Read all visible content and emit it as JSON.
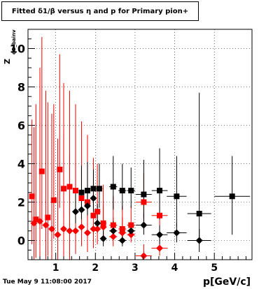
{
  "title": "Fitted δ1/β versus η and p for Primary pion+",
  "timestamp": "Tue May  9 11:08:00 2017",
  "chart_data": {
    "type": "scatter",
    "title": "Fitted δ1/β versus η and p for Primary pion+",
    "xlabel": "p[GeV/c]",
    "ylabel": "Z",
    "ylabel_sub": "dB_bainv",
    "xlim": [
      0.3,
      5.95
    ],
    "ylim": [
      -1.0,
      11.0
    ],
    "x_ticks": [
      1,
      2,
      3,
      4,
      5
    ],
    "y_ticks": [
      0,
      2,
      4,
      6,
      8,
      10
    ],
    "grid": true,
    "legend": "none",
    "colors": {
      "black": "#000000",
      "red": "#ff0000"
    },
    "series": [
      {
        "marker": "square",
        "color": "black",
        "points": [
          {
            "x": 2.45,
            "y": 2.8,
            "ex": 0.1,
            "ey_lo": 1.2,
            "ey_hi": 1.6
          },
          {
            "x": 2.68,
            "y": 2.6,
            "ex": 0.1,
            "ey_lo": 1.0,
            "ey_hi": 1.4
          },
          {
            "x": 2.9,
            "y": 2.6,
            "ex": 0.1,
            "ey_lo": 0.9,
            "ey_hi": 1.2
          },
          {
            "x": 3.22,
            "y": 2.4,
            "ex": 0.2,
            "ey_lo": 1.2,
            "ey_hi": 1.8
          },
          {
            "x": 3.62,
            "y": 2.6,
            "ex": 0.2,
            "ey_lo": 1.5,
            "ey_hi": 2.2
          },
          {
            "x": 4.05,
            "y": 2.3,
            "ex": 0.25,
            "ey_lo": 1.6,
            "ey_hi": 2.1
          },
          {
            "x": 4.62,
            "y": 1.4,
            "ex": 0.3,
            "ey_lo": 1.5,
            "ey_hi": 6.3
          },
          {
            "x": 5.45,
            "y": 2.3,
            "ex": 0.45,
            "ey_lo": 2.0,
            "ey_hi": 2.1
          },
          {
            "x": 2.1,
            "y": 2.7,
            "ex": 0.08,
            "ey_lo": 1.0,
            "ey_hi": 1.3
          },
          {
            "x": 1.95,
            "y": 2.7,
            "ex": 0.05,
            "ey_lo": 1.2,
            "ey_hi": 1.0
          },
          {
            "x": 1.8,
            "y": 2.6,
            "ex": 0.05,
            "ey_lo": 1.0,
            "ey_hi": 1.5
          },
          {
            "x": 1.65,
            "y": 2.5,
            "ex": 0.05,
            "ey_lo": 1.0,
            "ey_hi": 1.4
          }
        ]
      },
      {
        "marker": "diamond",
        "color": "black",
        "points": [
          {
            "x": 2.05,
            "y": 0.9,
            "ex": 0.08,
            "ey_lo": 0.5,
            "ey_hi": 1.0
          },
          {
            "x": 2.2,
            "y": 0.1,
            "ex": 0.08,
            "ey_lo": 0.4,
            "ey_hi": 0.6
          },
          {
            "x": 2.45,
            "y": 0.5,
            "ex": 0.1,
            "ey_lo": 0.3,
            "ey_hi": 0.5
          },
          {
            "x": 2.68,
            "y": 0.0,
            "ex": 0.1,
            "ey_lo": 0.3,
            "ey_hi": 0.4
          },
          {
            "x": 2.9,
            "y": 0.5,
            "ex": 0.1,
            "ey_lo": 0.3,
            "ey_hi": 0.4
          },
          {
            "x": 3.22,
            "y": 0.8,
            "ex": 0.2,
            "ey_lo": 0.5,
            "ey_hi": 0.6
          },
          {
            "x": 3.62,
            "y": 0.3,
            "ex": 0.2,
            "ey_lo": 0.5,
            "ey_hi": 0.5
          },
          {
            "x": 4.05,
            "y": 0.4,
            "ex": 0.25,
            "ey_lo": 0.5,
            "ey_hi": 0.5
          },
          {
            "x": 4.62,
            "y": 0.0,
            "ex": 0.3,
            "ey_lo": 0.6,
            "ey_hi": 0.6
          },
          {
            "x": 1.95,
            "y": 2.2,
            "ex": 0.05,
            "ey_lo": 0.5,
            "ey_hi": 0.8
          },
          {
            "x": 1.8,
            "y": 1.8,
            "ex": 0.05,
            "ey_lo": 0.5,
            "ey_hi": 0.8
          },
          {
            "x": 1.65,
            "y": 1.6,
            "ex": 0.05,
            "ey_lo": 0.5,
            "ey_hi": 0.8
          },
          {
            "x": 1.5,
            "y": 1.5,
            "ex": 0.05,
            "ey_lo": 0.6,
            "ey_hi": 1.0
          }
        ]
      },
      {
        "marker": "square",
        "color": "red",
        "points": [
          {
            "x": 2.05,
            "y": 1.5,
            "ex": 0.08,
            "ey_lo": 1.0,
            "ey_hi": 2.5
          },
          {
            "x": 2.2,
            "y": 0.9,
            "ex": 0.08,
            "ey_lo": 0.8,
            "ey_hi": 2.0
          },
          {
            "x": 2.45,
            "y": 0.8,
            "ex": 0.1,
            "ey_lo": 0.6,
            "ey_hi": 1.5
          },
          {
            "x": 2.68,
            "y": 0.6,
            "ex": 0.1,
            "ey_lo": 0.5,
            "ey_hi": 1.2
          },
          {
            "x": 2.9,
            "y": 0.8,
            "ex": 0.1,
            "ey_lo": 0.5,
            "ey_hi": 1.0
          },
          {
            "x": 3.22,
            "y": 2.0,
            "ex": 0.2,
            "ey_lo": 1.0,
            "ey_hi": 1.5
          },
          {
            "x": 3.62,
            "y": 1.3,
            "ex": 0.2,
            "ey_lo": 0.8,
            "ey_hi": 1.5
          },
          {
            "x": 1.95,
            "y": 1.3,
            "ex": 0.05,
            "ey_lo": 1.0,
            "ey_hi": 3.0
          },
          {
            "x": 1.8,
            "y": 2.0,
            "ex": 0.05,
            "ey_lo": 1.2,
            "ey_hi": 3.5
          },
          {
            "x": 1.65,
            "y": 2.2,
            "ex": 0.05,
            "ey_lo": 1.2,
            "ey_hi": 4.0
          },
          {
            "x": 1.5,
            "y": 2.6,
            "ex": 0.05,
            "ey_lo": 1.5,
            "ey_hi": 4.5
          },
          {
            "x": 1.35,
            "y": 2.8,
            "ex": 0.05,
            "ey_lo": 1.5,
            "ey_hi": 5.0
          },
          {
            "x": 1.2,
            "y": 2.7,
            "ex": 0.05,
            "ey_lo": 1.5,
            "ey_hi": 5.5
          },
          {
            "x": 1.1,
            "y": 3.7,
            "ex": 0.05,
            "ey_lo": 2.0,
            "ey_hi": 6.0
          },
          {
            "x": 0.95,
            "y": 2.1,
            "ex": 0.05,
            "ey_lo": 2.0,
            "ey_hi": 5.0
          },
          {
            "x": 0.8,
            "y": 1.2,
            "ex": 0.05,
            "ey_lo": 2.0,
            "ey_hi": 6.0
          },
          {
            "x": 0.65,
            "y": 3.6,
            "ex": 0.05,
            "ey_lo": 3.0,
            "ey_hi": 7.0
          },
          {
            "x": 0.5,
            "y": 1.1,
            "ex": 0.05,
            "ey_lo": 2.0,
            "ey_hi": 6.0
          },
          {
            "x": 0.4,
            "y": 2.3,
            "ex": 0.05,
            "ey_lo": 2.5,
            "ey_hi": 4.0
          }
        ]
      },
      {
        "marker": "diamond",
        "color": "red",
        "points": [
          {
            "x": 2.05,
            "y": 0.6,
            "ex": 0.08,
            "ey_lo": 0.8,
            "ey_hi": 1.5
          },
          {
            "x": 2.2,
            "y": 0.7,
            "ex": 0.08,
            "ey_lo": 0.6,
            "ey_hi": 1.2
          },
          {
            "x": 2.45,
            "y": 0.2,
            "ex": 0.1,
            "ey_lo": 0.5,
            "ey_hi": 1.0
          },
          {
            "x": 2.68,
            "y": 0.4,
            "ex": 0.1,
            "ey_lo": 0.5,
            "ey_hi": 0.8
          },
          {
            "x": 2.9,
            "y": 0.3,
            "ex": 0.1,
            "ey_lo": 0.4,
            "ey_hi": 0.6
          },
          {
            "x": 3.22,
            "y": -0.8,
            "ex": 0.2,
            "ey_lo": 0.4,
            "ey_hi": 0.6
          },
          {
            "x": 3.62,
            "y": -0.4,
            "ex": 0.2,
            "ey_lo": 0.4,
            "ey_hi": 0.6
          },
          {
            "x": 1.95,
            "y": 0.6,
            "ex": 0.05,
            "ey_lo": 1.0,
            "ey_hi": 2.0
          },
          {
            "x": 1.8,
            "y": 0.4,
            "ex": 0.05,
            "ey_lo": 1.0,
            "ey_hi": 2.5
          },
          {
            "x": 1.65,
            "y": 0.7,
            "ex": 0.05,
            "ey_lo": 1.0,
            "ey_hi": 3.0
          },
          {
            "x": 1.5,
            "y": 0.5,
            "ex": 0.05,
            "ey_lo": 1.2,
            "ey_hi": 3.5
          },
          {
            "x": 1.35,
            "y": 0.5,
            "ex": 0.05,
            "ey_lo": 1.5,
            "ey_hi": 4.0
          },
          {
            "x": 1.2,
            "y": 0.6,
            "ex": 0.05,
            "ey_lo": 1.5,
            "ey_hi": 5.0
          },
          {
            "x": 1.05,
            "y": 0.3,
            "ex": 0.05,
            "ey_lo": 1.5,
            "ey_hi": 5.0
          },
          {
            "x": 0.9,
            "y": 0.6,
            "ex": 0.05,
            "ey_lo": 2.0,
            "ey_hi": 6.0
          },
          {
            "x": 0.75,
            "y": 0.8,
            "ex": 0.05,
            "ey_lo": 2.0,
            "ey_hi": 7.0
          },
          {
            "x": 0.6,
            "y": 1.0,
            "ex": 0.05,
            "ey_lo": 2.5,
            "ey_hi": 8.0
          },
          {
            "x": 0.45,
            "y": 0.9,
            "ex": 0.05,
            "ey_lo": 2.0,
            "ey_hi": 5.0
          }
        ]
      }
    ]
  }
}
